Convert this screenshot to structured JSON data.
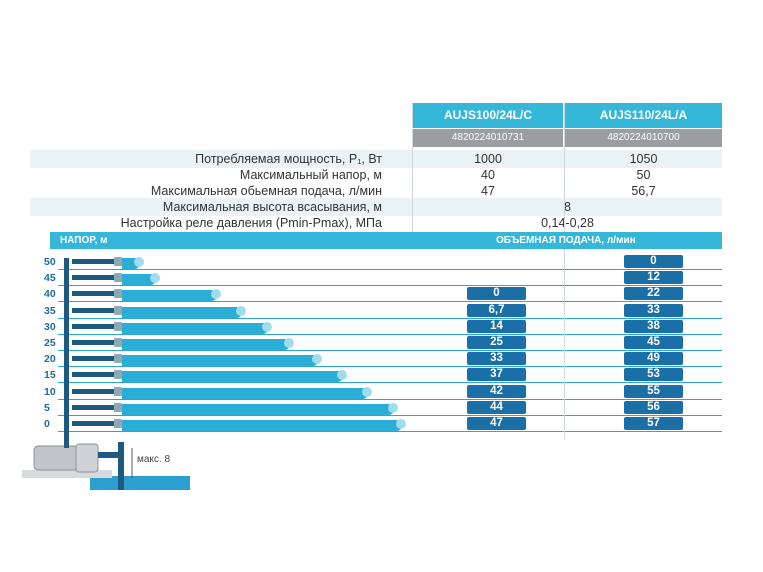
{
  "models": [
    {
      "name": "AUJS100/24L/C",
      "code": "4820224010731"
    },
    {
      "name": "AUJS110/24L/A",
      "code": "4820224010700"
    }
  ],
  "specs": [
    {
      "label": "Потребляемая мощность, P₁, Вт",
      "values": [
        "1000",
        "1050"
      ]
    },
    {
      "label": "Максимальный напор, м",
      "values": [
        "40",
        "50"
      ]
    },
    {
      "label": "Максимальная обьемная подача, л/мин",
      "values": [
        "47",
        "56,7"
      ]
    },
    {
      "label": "Максимальная высота всасывания, м",
      "shared": "8"
    },
    {
      "label": "Настройка реле давления (Pmin-Pmax), МПа",
      "shared": "0,14-0,28"
    }
  ],
  "table_header": {
    "left": "НАПОР, м",
    "right": "ОБЪЕМНАЯ ПОДАЧА, л/мин"
  },
  "flow_table": [
    {
      "head": "50",
      "m1": "",
      "m2": "0",
      "jet": 0.06
    },
    {
      "head": "45",
      "m1": "",
      "m2": "12",
      "jet": 0.12
    },
    {
      "head": "40",
      "m1": "0",
      "m2": "22",
      "jet": 0.34
    },
    {
      "head": "35",
      "m1": "6,7",
      "m2": "33",
      "jet": 0.43
    },
    {
      "head": "30",
      "m1": "14",
      "m2": "38",
      "jet": 0.52
    },
    {
      "head": "25",
      "m1": "25",
      "m2": "45",
      "jet": 0.6
    },
    {
      "head": "20",
      "m1": "33",
      "m2": "49",
      "jet": 0.7
    },
    {
      "head": "15",
      "m1": "37",
      "m2": "53",
      "jet": 0.79
    },
    {
      "head": "10",
      "m1": "42",
      "m2": "55",
      "jet": 0.88
    },
    {
      "head": "5",
      "m1": "44",
      "m2": "56",
      "jet": 0.97
    },
    {
      "head": "0",
      "m1": "47",
      "m2": "57",
      "jet": 1.0
    }
  ],
  "suction_label": "макс. 8",
  "colors": {
    "accent": "#35b7d9",
    "badge": "#1a6fa6",
    "code_bg": "#9a9ea1"
  }
}
